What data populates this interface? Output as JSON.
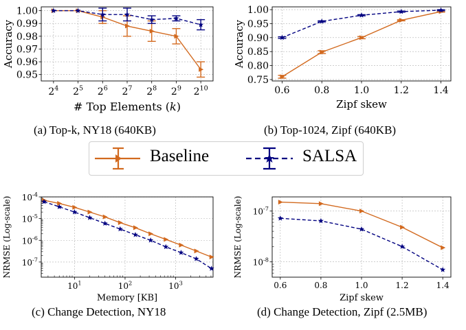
{
  "colors": {
    "baseline": "#d2691e",
    "salsa": "#000080",
    "grid": "#b0b0b0"
  },
  "legend": {
    "items": [
      {
        "label": "Baseline"
      },
      {
        "label": "SALSA"
      }
    ]
  },
  "captions": {
    "a": "(a) Top-k, NY18 (640KB)",
    "b": "(b) Top-1024, Zipf (640KB)",
    "c": "(c) Change Detection, NY18",
    "d": "(d) Change Detection, Zipf (2.5MB)"
  },
  "chart_data": [
    {
      "id": "a",
      "type": "line",
      "xlabel": "# Top Elements (k)",
      "ylabel": "Accuracy",
      "x": [
        16,
        32,
        64,
        128,
        256,
        512,
        1024
      ],
      "xtick_labels": [
        "2^4",
        "2^5",
        "2^6",
        "2^7",
        "2^8",
        "2^9",
        "2^10"
      ],
      "ylim": [
        0.945,
        1.003
      ],
      "yticks": [
        "0.95",
        "0.96",
        "0.97",
        "0.98",
        "0.99",
        "1.00"
      ],
      "series": [
        {
          "name": "Baseline",
          "values": [
            1.0,
            1.0,
            0.995,
            0.988,
            0.984,
            0.98,
            0.954
          ],
          "errors": [
            0,
            0,
            0.005,
            0.008,
            0.008,
            0.006,
            0.006
          ]
        },
        {
          "name": "SALSA",
          "values": [
            1.0,
            1.0,
            0.997,
            0.997,
            0.993,
            0.994,
            0.989
          ],
          "errors": [
            0,
            0,
            0.005,
            0.005,
            0.003,
            0.002,
            0.004
          ]
        }
      ],
      "grid": true
    },
    {
      "id": "b",
      "type": "line",
      "xlabel": "Zipf skew",
      "ylabel": "Accuracy",
      "x": [
        0.6,
        0.8,
        1.0,
        1.2,
        1.4
      ],
      "xtick_labels": [
        "0.6",
        "0.8",
        "1.0",
        "1.2",
        "1.4"
      ],
      "xlim": [
        0.55,
        1.45
      ],
      "ylim": [
        0.745,
        1.01
      ],
      "yticks": [
        "0.75",
        "0.80",
        "0.85",
        "0.90",
        "0.95",
        "1.00"
      ],
      "series": [
        {
          "name": "Baseline",
          "values": [
            0.76,
            0.848,
            0.9,
            0.962,
            0.993
          ],
          "errors": [
            0.005,
            0.005,
            0.004,
            0.002,
            0.002
          ]
        },
        {
          "name": "SALSA",
          "values": [
            0.9,
            0.958,
            0.98,
            0.993,
            0.998
          ],
          "errors": [
            0.003,
            0.002,
            0.002,
            0.002,
            0.002
          ]
        }
      ],
      "grid": true
    },
    {
      "id": "c",
      "type": "line",
      "xlabel": "Memory [KB]",
      "ylabel": "NRMSE (Log-scale)",
      "x": [
        2.5,
        5,
        10,
        20,
        40,
        80,
        160,
        320,
        640,
        1280,
        2560,
        5120
      ],
      "xtick_labels": [
        "10^1",
        "10^2",
        "10^3"
      ],
      "xlim": [
        2.2,
        5500
      ],
      "ylim": [
        2e-08,
        0.0001
      ],
      "yticks": [
        "10^-4",
        "10^-5",
        "10^-6",
        "10^-7"
      ],
      "log_scale": true,
      "series": [
        {
          "name": "Baseline",
          "values": [
            7e-05,
            5e-05,
            3.3e-05,
            2e-05,
            1.2e-05,
            6.5e-06,
            3.8e-06,
            2e-06,
            1.1e-06,
            6e-07,
            3.2e-07,
            1.7e-07
          ]
        },
        {
          "name": "SALSA",
          "values": [
            6e-05,
            3.5e-05,
            2e-05,
            1.1e-05,
            6e-06,
            3.3e-06,
            1.8e-06,
            1e-06,
            5e-07,
            2.7e-07,
            1.4e-07,
            5e-08
          ]
        }
      ],
      "grid": true
    },
    {
      "id": "d",
      "type": "line",
      "xlabel": "Zipf skew",
      "ylabel": "NRMSE (Log-scale)",
      "x": [
        0.6,
        0.8,
        1.0,
        1.2,
        1.4
      ],
      "xtick_labels": [
        "0.6",
        "0.8",
        "1.0",
        "1.2",
        "1.4"
      ],
      "xlim": [
        0.56,
        1.44
      ],
      "ylim": [
        5e-09,
        1.9e-07
      ],
      "yticks": [
        "10^-7",
        "10^-8"
      ],
      "log_scale": true,
      "series": [
        {
          "name": "Baseline",
          "values": [
            1.5e-07,
            1.4e-07,
            1e-07,
            4.8e-08,
            1.9e-08
          ]
        },
        {
          "name": "SALSA",
          "values": [
            7.2e-08,
            6.4e-08,
            4.4e-08,
            2e-08,
            7e-09
          ]
        }
      ],
      "grid": true
    }
  ]
}
